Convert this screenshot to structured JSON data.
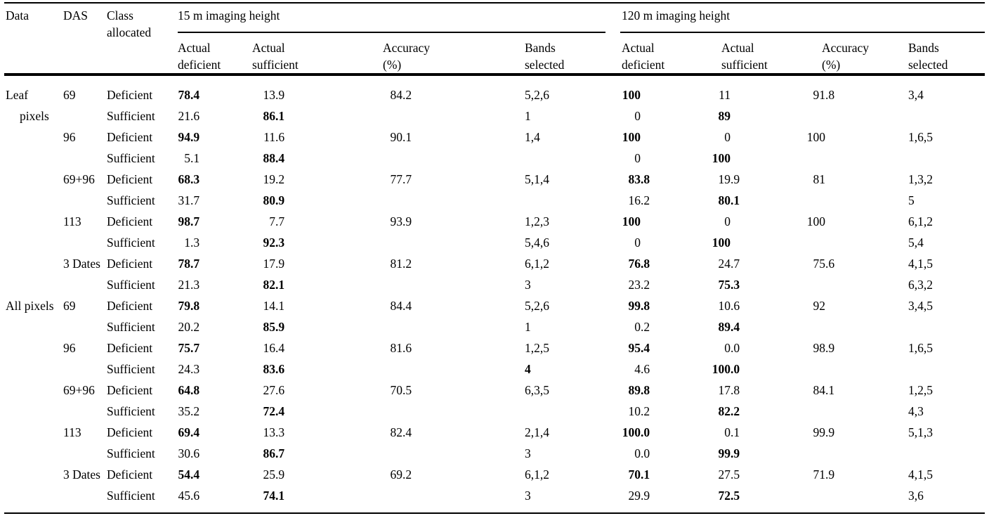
{
  "table": {
    "groups": [
      {
        "label": "15 m imaging height"
      },
      {
        "label": "120 m imaging height"
      }
    ],
    "headers": [
      "Data",
      "DAS",
      "Class\nallocated",
      "Actual\ndeficient",
      "Actual\nsufficient",
      "Accuracy\n(%)",
      "Bands\nselected",
      "Actual\ndeficient",
      "Actual\nsufficient",
      "Accuracy\n(%)",
      "Bands\nselected"
    ],
    "rows": [
      {
        "cells": [
          "Leaf",
          "69",
          "Deficient",
          {
            "v": "78.4",
            "b": true
          },
          "13.9",
          "84.2",
          "5,2,6",
          {
            "v": "100",
            "b": true
          },
          "11",
          "91.8",
          "3,4"
        ]
      },
      {
        "cells": [
          {
            "v": "pixels",
            "indent": true
          },
          "",
          "Sufficient",
          "21.6",
          {
            "v": "86.1",
            "b": true
          },
          "",
          "1",
          "0",
          {
            "v": "89",
            "b": true
          },
          "",
          ""
        ]
      },
      {
        "cells": [
          "",
          "96",
          "Deficient",
          {
            "v": "94.9",
            "b": true
          },
          "11.6",
          "90.1",
          "1,4",
          {
            "v": "100",
            "b": true
          },
          "0",
          "100",
          "1,6,5"
        ]
      },
      {
        "cells": [
          "",
          "",
          "Sufficient",
          "5.1",
          {
            "v": "88.4",
            "b": true
          },
          "",
          "",
          "0",
          {
            "v": "100",
            "b": true
          },
          "",
          ""
        ]
      },
      {
        "cells": [
          "",
          "69+96",
          "Deficient",
          {
            "v": "68.3",
            "b": true
          },
          "19.2",
          "77.7",
          "5,1,4",
          {
            "v": "83.8",
            "b": true
          },
          "19.9",
          "81",
          "1,3,2"
        ]
      },
      {
        "cells": [
          "",
          "",
          "Sufficient",
          "31.7",
          {
            "v": "80.9",
            "b": true
          },
          "",
          "",
          "16.2",
          {
            "v": "80.1",
            "b": true
          },
          "",
          "5"
        ]
      },
      {
        "cells": [
          "",
          "113",
          "Deficient",
          {
            "v": "98.7",
            "b": true
          },
          "7.7",
          "93.9",
          "1,2,3",
          {
            "v": "100",
            "b": true
          },
          "0",
          "100",
          "6,1,2"
        ]
      },
      {
        "cells": [
          "",
          "",
          "Sufficient",
          "1.3",
          {
            "v": "92.3",
            "b": true
          },
          "",
          "5,4,6",
          "0",
          {
            "v": "100",
            "b": true
          },
          "",
          "5,4"
        ]
      },
      {
        "cells": [
          "",
          "3 Dates",
          "Deficient",
          {
            "v": "78.7",
            "b": true
          },
          "17.9",
          "81.2",
          "6,1,2",
          {
            "v": "76.8",
            "b": true
          },
          "24.7",
          "75.6",
          "4,1,5"
        ]
      },
      {
        "cells": [
          "",
          "",
          "Sufficient",
          "21.3",
          {
            "v": "82.1",
            "b": true
          },
          "",
          "3",
          "23.2",
          {
            "v": "75.3",
            "b": true
          },
          "",
          "6,3,2"
        ]
      },
      {
        "cells": [
          "All pixels",
          "69",
          "Deficient",
          {
            "v": "79.8",
            "b": true
          },
          "14.1",
          "84.4",
          "5,2,6",
          {
            "v": "99.8",
            "b": true
          },
          "10.6",
          "92",
          "3,4,5"
        ]
      },
      {
        "cells": [
          "",
          "",
          "Sufficient",
          "20.2",
          {
            "v": "85.9",
            "b": true
          },
          "",
          "1",
          "0.2",
          {
            "v": "89.4",
            "b": true
          },
          "",
          ""
        ]
      },
      {
        "cells": [
          "",
          "96",
          "Deficient",
          {
            "v": "75.7",
            "b": true
          },
          "16.4",
          "81.6",
          "1,2,5",
          {
            "v": "95.4",
            "b": true
          },
          "0.0",
          "98.9",
          "1,6,5"
        ]
      },
      {
        "cells": [
          "",
          "",
          "Sufficient",
          "24.3",
          {
            "v": "83.6",
            "b": true
          },
          "",
          {
            "v": "4",
            "b": true
          },
          "4.6",
          {
            "v": "100.0",
            "b": true
          },
          "",
          ""
        ]
      },
      {
        "cells": [
          "",
          "69+96",
          "Deficient",
          {
            "v": "64.8",
            "b": true
          },
          "27.6",
          "70.5",
          "6,3,5",
          {
            "v": "89.8",
            "b": true
          },
          "17.8",
          "84.1",
          "1,2,5"
        ]
      },
      {
        "cells": [
          "",
          "",
          "Sufficient",
          "35.2",
          {
            "v": "72.4",
            "b": true
          },
          "",
          "",
          "10.2",
          {
            "v": "82.2",
            "b": true
          },
          "",
          "4,3"
        ]
      },
      {
        "cells": [
          "",
          "113",
          "Deficient",
          {
            "v": "69.4",
            "b": true
          },
          "13.3",
          "82.4",
          "2,1,4",
          {
            "v": "100.0",
            "b": true
          },
          "0.1",
          "99.9",
          "5,1,3"
        ]
      },
      {
        "cells": [
          "",
          "",
          "Sufficient",
          "30.6",
          {
            "v": "86.7",
            "b": true
          },
          "",
          "3",
          "0.0",
          {
            "v": "99.9",
            "b": true
          },
          "",
          ""
        ]
      },
      {
        "cells": [
          "",
          "3 Dates",
          "Deficient",
          {
            "v": "54.4",
            "b": true
          },
          "25.9",
          "69.2",
          "6,1,2",
          {
            "v": "70.1",
            "b": true
          },
          "27.5",
          "71.9",
          "4,1,5"
        ]
      },
      {
        "cells": [
          "",
          "",
          "Sufficient",
          "45.6",
          {
            "v": "74.1",
            "b": true
          },
          "",
          "3",
          "29.9",
          {
            "v": "72.5",
            "b": true
          },
          "",
          "3,6"
        ]
      }
    ]
  }
}
